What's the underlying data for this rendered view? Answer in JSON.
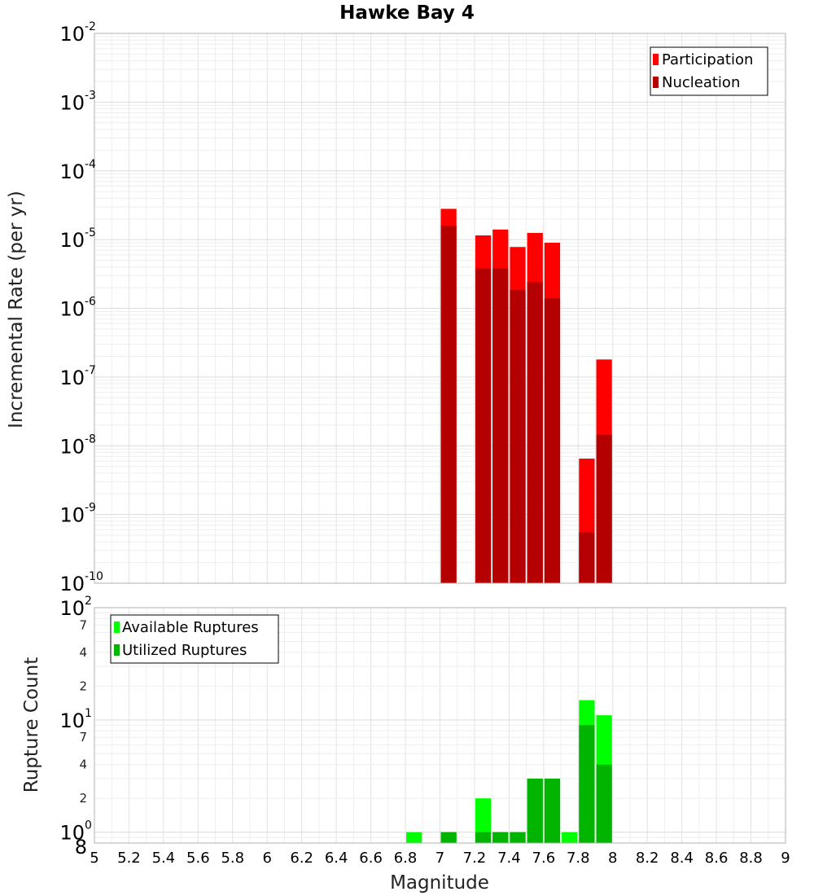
{
  "chart_data": [
    {
      "type": "bar",
      "title": "Hawke Bay 4",
      "xlabel": "",
      "ylabel": "Incremental Rate (per yr)",
      "yscale": "log",
      "ylim": [
        1e-10,
        0.01
      ],
      "xlim": [
        5,
        9
      ],
      "grid": true,
      "legend_position": "top-right",
      "bin_width": 0.1,
      "series": [
        {
          "name": "Participation",
          "color": "#ff0000",
          "x": [
            7.05,
            7.25,
            7.35,
            7.45,
            7.55,
            7.65,
            7.85,
            7.95
          ],
          "values": [
            2.8e-05,
            1.15e-05,
            1.4e-05,
            7.8e-06,
            1.25e-05,
            9e-06,
            6.5e-09,
            1.8e-07
          ]
        },
        {
          "name": "Nucleation",
          "color": "#b40000",
          "x": [
            7.05,
            7.25,
            7.35,
            7.45,
            7.55,
            7.65,
            7.85,
            7.95
          ],
          "values": [
            1.6e-05,
            3.8e-06,
            3.8e-06,
            1.85e-06,
            2.4e-06,
            1.4e-06,
            5.5e-10,
            1.45e-08
          ]
        }
      ]
    },
    {
      "type": "bar",
      "title": "",
      "xlabel": "Magnitude",
      "ylabel": "Rupture Count",
      "yscale": "log",
      "ylim": [
        0.8,
        100
      ],
      "xlim": [
        5,
        9
      ],
      "grid": true,
      "legend_position": "top-left",
      "bin_width": 0.1,
      "series": [
        {
          "name": "Available Ruptures",
          "color": "#00ff00",
          "x": [
            6.85,
            7.05,
            7.25,
            7.35,
            7.45,
            7.55,
            7.65,
            7.75,
            7.85,
            7.95
          ],
          "values": [
            1,
            1,
            2,
            1,
            1,
            3,
            3,
            1,
            15,
            11
          ]
        },
        {
          "name": "Utilized Ruptures",
          "color": "#00b400",
          "x": [
            7.05,
            7.25,
            7.35,
            7.45,
            7.55,
            7.65,
            7.85,
            7.95
          ],
          "values": [
            1,
            1,
            1,
            1,
            3,
            3,
            9,
            4
          ]
        }
      ]
    }
  ],
  "x_ticks": [
    "5",
    "5.2",
    "5.4",
    "5.6",
    "5.8",
    "6",
    "6.2",
    "6.4",
    "6.6",
    "6.8",
    "7",
    "7.2",
    "7.4",
    "7.6",
    "7.8",
    "8",
    "8.2",
    "8.4",
    "8.6",
    "8.8",
    "9"
  ],
  "top_y_ticks": [
    {
      "base": "10",
      "exp": "-2"
    },
    {
      "base": "10",
      "exp": "-3"
    },
    {
      "base": "10",
      "exp": "-4"
    },
    {
      "base": "10",
      "exp": "-5"
    },
    {
      "base": "10",
      "exp": "-6"
    },
    {
      "base": "10",
      "exp": "-7"
    },
    {
      "base": "10",
      "exp": "-8"
    },
    {
      "base": "10",
      "exp": "-9"
    },
    {
      "base": "10",
      "exp": "-10"
    }
  ],
  "bottom_y_ticks": {
    "major": [
      {
        "base": "10",
        "exp": "2",
        "value": 100
      },
      {
        "base": "10",
        "exp": "1",
        "value": 10
      },
      {
        "base": "10",
        "exp": "0",
        "value": 1
      }
    ],
    "minor": [
      {
        "label": "7",
        "value": 70
      },
      {
        "label": "4",
        "value": 40
      },
      {
        "label": "2",
        "value": 20
      },
      {
        "label": "7",
        "value": 7
      },
      {
        "label": "4",
        "value": 4
      },
      {
        "label": "2",
        "value": 2
      },
      {
        "label": "8",
        "value": 0.8
      }
    ]
  }
}
